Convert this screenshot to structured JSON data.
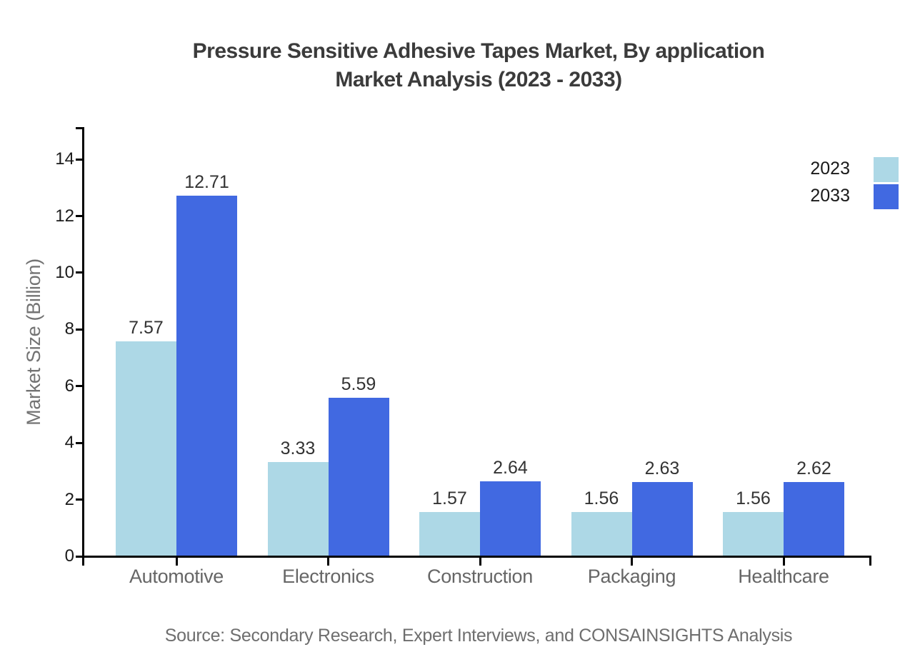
{
  "chart_data": {
    "type": "bar",
    "title_line1": "Pressure Sensitive Adhesive Tapes Market, By application",
    "title_line2": "Market Analysis (2023 - 2033)",
    "categories": [
      "Automotive",
      "Electronics",
      "Construction",
      "Packaging",
      "Healthcare"
    ],
    "series": [
      {
        "name": "2023",
        "color": "#ADD8E6",
        "values": [
          7.57,
          3.33,
          1.57,
          1.56,
          1.56
        ]
      },
      {
        "name": "2033",
        "color": "#4169E1",
        "values": [
          12.71,
          5.59,
          2.64,
          2.63,
          2.62
        ]
      }
    ],
    "ylabel": "Market Size (Billion)",
    "yticks": [
      0,
      2,
      4,
      6,
      8,
      10,
      12,
      14
    ],
    "ylim": [
      0,
      15.1
    ],
    "grid": false,
    "legend_position": "top-right",
    "value_label_decimals": 2
  },
  "source": "Source: Secondary Research, Expert Interviews, and CONSAINSIGHTS Analysis",
  "colors": {
    "series_2023": "#ADD8E6",
    "series_2033": "#4169E1",
    "axis": "#000000",
    "title_text": "#3b3b3b",
    "ytick_text": "#1a1a1a",
    "category_text": "#666666",
    "value_text": "#333333",
    "muted_text": "#6e6e6e"
  }
}
